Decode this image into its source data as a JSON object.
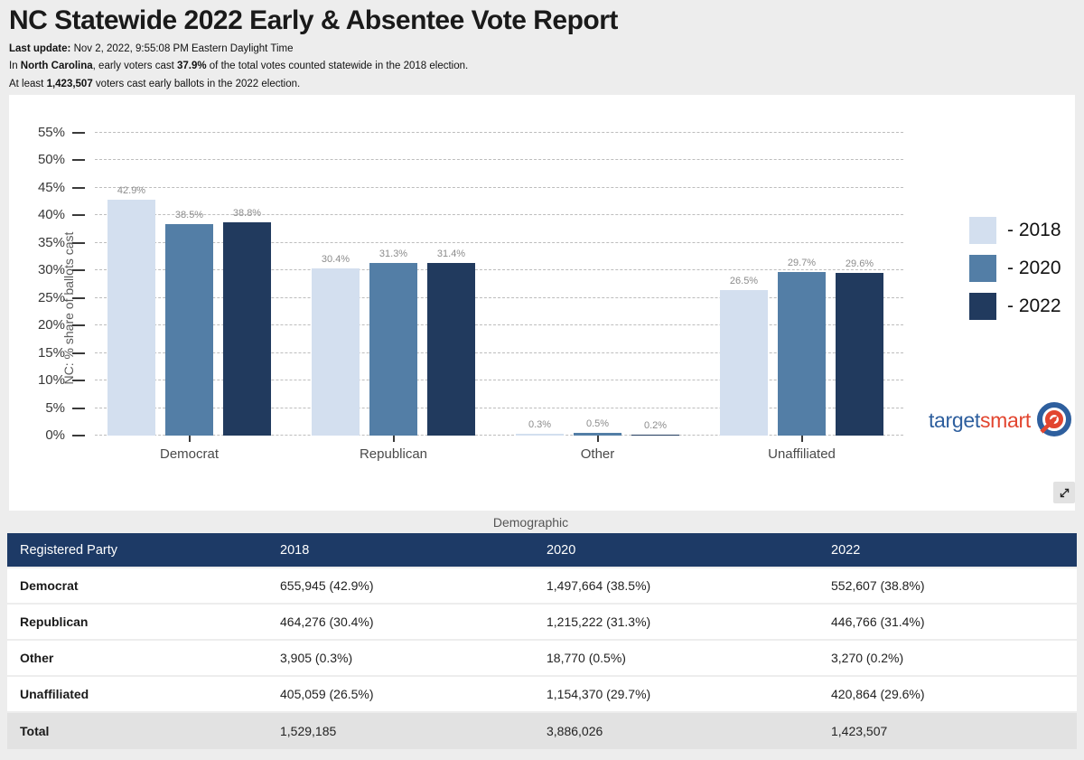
{
  "header": {
    "title": "NC Statewide 2022 Early & Absentee Vote Report",
    "last_update_label": "Last update:",
    "last_update_value": " Nov 2, 2022, 9:55:08 PM Eastern Daylight Time",
    "line1_prefix": "In ",
    "line1_bold_state": "North Carolina",
    "line1_mid": ", early voters cast ",
    "line1_bold_pct": "37.9%",
    "line1_suffix": " of the total votes counted statewide in the 2018 election.",
    "line2_prefix": "At least ",
    "line2_bold_count": "1,423,507",
    "line2_suffix": " voters cast early ballots in the 2022 election."
  },
  "chart_data": {
    "type": "bar",
    "title": "",
    "xlabel": "Demographic",
    "ylabel": "NC: % share of ballots cast",
    "ylim": [
      0,
      55
    ],
    "ytick_step": 5,
    "ytick_labels": [
      "0%",
      "5%",
      "10%",
      "15%",
      "20%",
      "25%",
      "30%",
      "35%",
      "40%",
      "45%",
      "50%",
      "55%"
    ],
    "grid": "horizontal-dashed",
    "legend_position": "right",
    "categories": [
      "Democrat",
      "Republican",
      "Other",
      "Unaffiliated"
    ],
    "series": [
      {
        "name": "2018",
        "color": "#d3dfef",
        "values": [
          42.9,
          30.4,
          0.3,
          26.5
        ],
        "labels": [
          "42.9%",
          "30.4%",
          "0.3%",
          "26.5%"
        ]
      },
      {
        "name": "2020",
        "color": "#537ea6",
        "values": [
          38.5,
          31.3,
          0.5,
          29.7
        ],
        "labels": [
          "38.5%",
          "31.3%",
          "0.5%",
          "29.7%"
        ]
      },
      {
        "name": "2022",
        "color": "#213a5e",
        "values": [
          38.8,
          31.4,
          0.2,
          29.6
        ],
        "labels": [
          "38.8%",
          "31.4%",
          "0.2%",
          "29.6%"
        ]
      }
    ],
    "legend_labels": [
      "- 2018",
      "- 2020",
      "- 2022"
    ]
  },
  "logo": {
    "text_blue": "target",
    "text_red": "smart",
    "icon": "target-bullseye-arrow-icon"
  },
  "expand_button": {
    "icon": "expand-diagonal-icon"
  },
  "table": {
    "columns": [
      "Registered Party",
      "2018",
      "2020",
      "2022"
    ],
    "rows": [
      {
        "label": "Democrat",
        "v2018": "655,945 (42.9%)",
        "v2020": "1,497,664 (38.5%)",
        "v2022": "552,607 (38.8%)",
        "is_total": false
      },
      {
        "label": "Republican",
        "v2018": "464,276 (30.4%)",
        "v2020": "1,215,222 (31.3%)",
        "v2022": "446,766 (31.4%)",
        "is_total": false
      },
      {
        "label": "Other",
        "v2018": "3,905 (0.3%)",
        "v2020": "18,770 (0.5%)",
        "v2022": "3,270 (0.2%)",
        "is_total": false
      },
      {
        "label": "Unaffiliated",
        "v2018": "405,059 (26.5%)",
        "v2020": "1,154,370 (29.7%)",
        "v2022": "420,864 (29.6%)",
        "is_total": false
      },
      {
        "label": "Total",
        "v2018": "1,529,185",
        "v2020": "3,886,026",
        "v2022": "1,423,507",
        "is_total": true
      }
    ]
  },
  "colors": {
    "page_bg": "#ededed",
    "card_bg": "#ffffff",
    "table_header_bg": "#1d3a66",
    "total_row_bg": "#e2e2e2",
    "logo_blue": "#2e5f9e",
    "logo_red": "#e2452f"
  }
}
